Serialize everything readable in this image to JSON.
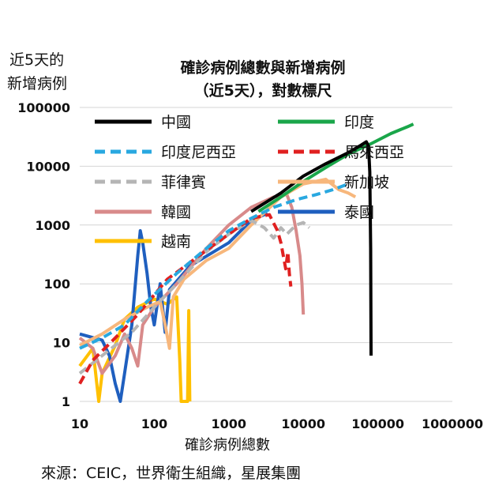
{
  "chart_data": {
    "type": "line",
    "title": "確診病例總數與新增病例",
    "subtitle": "（近5天），對數標尺",
    "ylabel_line1": "近5天的",
    "ylabel_line2": "新增病例",
    "xlabel": "確診病例總數",
    "source": "來源：CEIC，世界衛生組織，星展集團",
    "xscale": "log",
    "yscale": "log",
    "xlim": [
      10,
      1000000
    ],
    "ylim": [
      1,
      100000
    ],
    "xticks": [
      "10",
      "100",
      "1000",
      "10000",
      "100000",
      "1000000"
    ],
    "yticks": [
      "1",
      "10",
      "100",
      "1000",
      "10000",
      "100000"
    ],
    "grid": "horizontal",
    "legend_position": "top-inside",
    "series": [
      {
        "name": "中國",
        "color": "#000000",
        "dash": "solid",
        "points": [
          [
            2000,
            1700
          ],
          [
            5000,
            3500
          ],
          [
            10000,
            6800
          ],
          [
            20000,
            11000
          ],
          [
            40000,
            17000
          ],
          [
            60000,
            23000
          ],
          [
            70000,
            26000
          ],
          [
            75000,
            22000
          ],
          [
            78000,
            8000
          ],
          [
            80000,
            400
          ],
          [
            81000,
            6
          ]
        ]
      },
      {
        "name": "印度",
        "color": "#1aa64a",
        "dash": "solid",
        "points": [
          [
            2500,
            1700
          ],
          [
            5000,
            3000
          ],
          [
            10000,
            5500
          ],
          [
            20000,
            9500
          ],
          [
            40000,
            16000
          ],
          [
            80000,
            24000
          ],
          [
            150000,
            36000
          ],
          [
            250000,
            47000
          ],
          [
            300000,
            52000
          ]
        ]
      },
      {
        "name": "印度尼西亞",
        "color": "#29a8e0",
        "dash": "dashed",
        "points": [
          [
            10,
            8
          ],
          [
            20,
            12
          ],
          [
            40,
            20
          ],
          [
            80,
            50
          ],
          [
            200,
            150
          ],
          [
            500,
            400
          ],
          [
            1000,
            800
          ],
          [
            2000,
            1300
          ],
          [
            4000,
            2000
          ],
          [
            8000,
            2700
          ],
          [
            15000,
            3300
          ],
          [
            25000,
            4000
          ],
          [
            40000,
            5000
          ]
        ]
      },
      {
        "name": "馬來西亞",
        "color": "#e02020",
        "dash": "dashed",
        "points": [
          [
            10,
            2
          ],
          [
            15,
            5
          ],
          [
            30,
            12
          ],
          [
            60,
            30
          ],
          [
            150,
            120
          ],
          [
            400,
            300
          ],
          [
            1000,
            700
          ],
          [
            2000,
            1300
          ],
          [
            3500,
            1500
          ],
          [
            4500,
            800
          ],
          [
            5000,
            500
          ],
          [
            5800,
            180
          ],
          [
            6200,
            350
          ],
          [
            6500,
            150
          ],
          [
            6800,
            90
          ]
        ]
      },
      {
        "name": "菲律賓",
        "color": "#b5b5b5",
        "dash": "dashed",
        "points": [
          [
            10,
            3
          ],
          [
            20,
            6
          ],
          [
            50,
            15
          ],
          [
            100,
            40
          ],
          [
            200,
            100
          ],
          [
            500,
            350
          ],
          [
            1000,
            700
          ],
          [
            2000,
            1200
          ],
          [
            3000,
            900
          ],
          [
            4000,
            600
          ],
          [
            5000,
            900
          ],
          [
            6000,
            700
          ],
          [
            8000,
            1000
          ],
          [
            10000,
            1100
          ],
          [
            12000,
            900
          ]
        ]
      },
      {
        "name": "新加坡",
        "color": "#f7b77c",
        "dash": "solid",
        "points": [
          [
            10,
            9
          ],
          [
            20,
            14
          ],
          [
            40,
            25
          ],
          [
            80,
            40
          ],
          [
            120,
            50
          ],
          [
            140,
            20
          ],
          [
            160,
            8
          ],
          [
            180,
            60
          ],
          [
            250,
            120
          ],
          [
            500,
            250
          ],
          [
            1000,
            400
          ],
          [
            2000,
            1000
          ],
          [
            5000,
            3000
          ],
          [
            10000,
            5000
          ],
          [
            20000,
            6000
          ],
          [
            30000,
            4000
          ],
          [
            40000,
            3500
          ],
          [
            50000,
            3000
          ]
        ]
      },
      {
        "name": "韓國",
        "color": "#d88a8a",
        "dash": "solid",
        "points": [
          [
            10,
            12
          ],
          [
            15,
            8
          ],
          [
            20,
            3
          ],
          [
            30,
            6
          ],
          [
            40,
            14
          ],
          [
            50,
            8
          ],
          [
            60,
            4
          ],
          [
            70,
            20
          ],
          [
            100,
            40
          ],
          [
            200,
            100
          ],
          [
            500,
            400
          ],
          [
            1000,
            1000
          ],
          [
            2000,
            2000
          ],
          [
            4000,
            3000
          ],
          [
            6000,
            3300
          ],
          [
            7000,
            2000
          ],
          [
            8000,
            800
          ],
          [
            9000,
            300
          ],
          [
            9600,
            100
          ],
          [
            10000,
            30
          ]
        ]
      },
      {
        "name": "泰國",
        "color": "#1f5fbf",
        "dash": "solid",
        "points": [
          [
            10,
            14
          ],
          [
            20,
            11
          ],
          [
            25,
            6
          ],
          [
            30,
            2
          ],
          [
            35,
            1
          ],
          [
            40,
            3
          ],
          [
            50,
            20
          ],
          [
            60,
            300
          ],
          [
            65,
            800
          ],
          [
            70,
            500
          ],
          [
            80,
            150
          ],
          [
            90,
            40
          ],
          [
            100,
            20
          ],
          [
            120,
            100
          ],
          [
            140,
            15
          ],
          [
            160,
            80
          ],
          [
            300,
            200
          ],
          [
            1000,
            500
          ],
          [
            2000,
            1200
          ],
          [
            3000,
            1500
          ],
          [
            3300,
            1600
          ]
        ]
      },
      {
        "name": "越南",
        "color": "#ffc000",
        "dash": "solid",
        "points": [
          [
            10,
            4
          ],
          [
            15,
            8
          ],
          [
            18,
            1
          ],
          [
            20,
            3
          ],
          [
            30,
            9
          ],
          [
            40,
            25
          ],
          [
            60,
            40
          ],
          [
            100,
            55
          ],
          [
            150,
            45
          ],
          [
            200,
            60
          ],
          [
            220,
            5
          ],
          [
            230,
            1
          ],
          [
            250,
            1
          ],
          [
            260,
            1
          ],
          [
            270,
            1
          ],
          [
            280,
            1
          ],
          [
            290,
            35
          ],
          [
            300,
            1
          ]
        ]
      }
    ]
  }
}
